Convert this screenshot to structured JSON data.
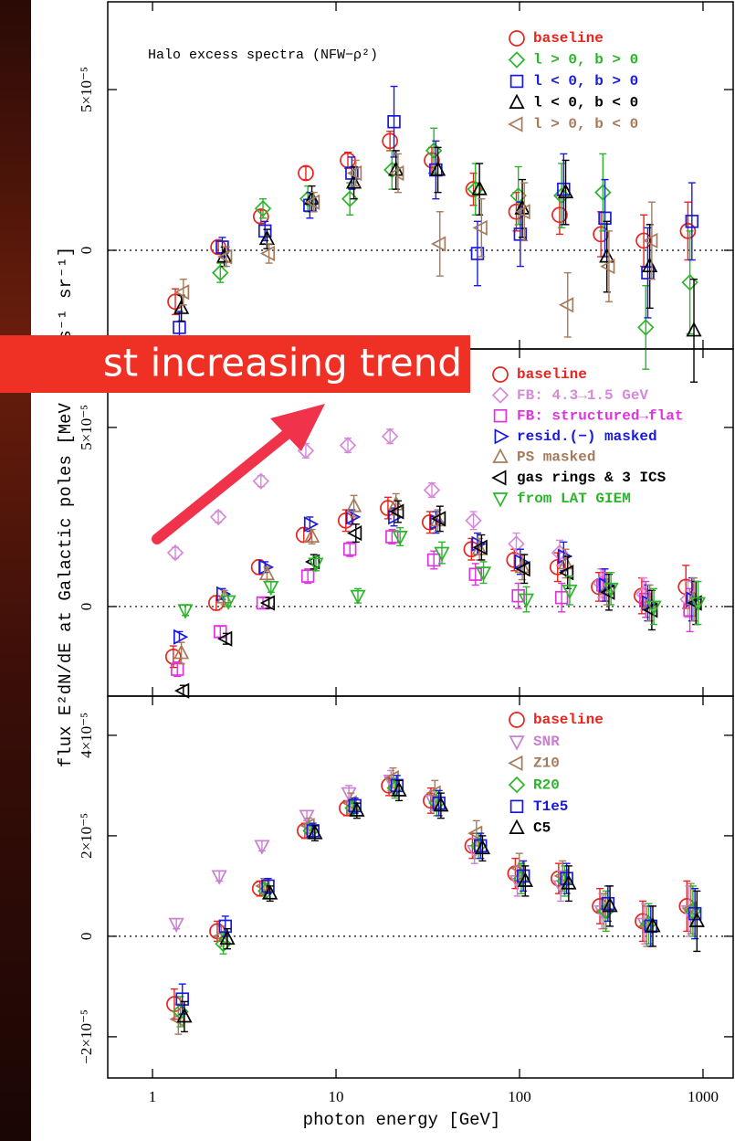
{
  "chart_data": [
    {
      "type": "scatter",
      "annotation": "Halo excess spectra (NFW−ρ²)",
      "log_x": true,
      "legend": "upper right",
      "zero_line": true,
      "x": [
        1.4,
        2.4,
        4.1,
        7.2,
        12.2,
        20.7,
        35,
        59,
        101,
        174,
        292,
        500,
        870
      ],
      "xlim": [
        0.57,
        1460
      ],
      "xticks": [
        1,
        10,
        100,
        1000
      ],
      "ylim": [
        -3.07e-05,
        7.73e-05
      ],
      "yticks": [
        0,
        {
          "value": 5e-05,
          "label": "5×10⁻⁵"
        }
      ],
      "series": [
        {
          "name": "baseline",
          "color": "#e8241e",
          "marker": "circle",
          "values": [
            -1.6e-05,
            1e-06,
            1.05e-05,
            2.4e-05,
            2.8e-05,
            3.4e-05,
            2.8e-05,
            1.9e-05,
            1.2e-05,
            1.1e-05,
            5e-06,
            3e-06,
            6e-06
          ],
          "errors": [
            4e-06,
            2e-06,
            2e-06,
            2e-06,
            2.5e-06,
            3e-06,
            4e-06,
            5e-06,
            6e-06,
            6e-06,
            7e-06,
            8e-06,
            9e-06
          ]
        },
        {
          "name": "l > 0, b > 0",
          "color": "#2bb52b",
          "marker": "diamond",
          "values": [
            null,
            -7e-06,
            1.3e-05,
            1.6e-05,
            1.6e-05,
            2.5e-05,
            3.1e-05,
            1.9e-05,
            1.7e-05,
            1.7e-05,
            1.8e-05,
            -2.4e-05,
            -1e-05
          ],
          "errors": [
            null,
            3e-06,
            3e-06,
            4e-06,
            5e-06,
            6e-06,
            7e-06,
            8e-06,
            9e-06,
            1e-05,
            1.2e-05,
            1.3e-05,
            1.6e-05
          ]
        },
        {
          "name": "l < 0, b > 0",
          "color": "#1a1adf",
          "marker": "square",
          "values": [
            -2.4e-05,
            1e-06,
            6e-06,
            1.4e-05,
            2.4e-05,
            4e-05,
            2.5e-05,
            -1e-06,
            5e-06,
            1.9e-05,
            1e-05,
            -7e-06,
            9e-06
          ],
          "errors": [
            5e-06,
            3e-06,
            3e-06,
            4e-06,
            5e-06,
            1.1e-05,
            9e-06,
            1e-05,
            1e-05,
            1.1e-05,
            1.2e-05,
            1.4e-05,
            1.2e-05
          ]
        },
        {
          "name": "l < 0, b < 0",
          "color": "#000000",
          "marker": "triangle-up",
          "values": [
            -1.8e-05,
            -2e-06,
            3.5e-06,
            1.6e-05,
            2.1e-05,
            2.5e-05,
            2.5e-05,
            1.9e-05,
            1.3e-05,
            1.8e-05,
            -2e-06,
            -5e-06,
            -2.5e-05
          ],
          "errors": [
            4e-06,
            3e-06,
            3e-06,
            4e-06,
            5e-06,
            6e-06,
            7e-06,
            8e-06,
            9e-06,
            1e-05,
            1.1e-05,
            1.3e-05,
            1.6e-05
          ]
        },
        {
          "name": "l > 0, b < 0",
          "color": "#a67b5b",
          "marker": "triangle-left",
          "values": [
            -1.3e-05,
            -2e-06,
            -1e-06,
            1.5e-05,
            2.4e-05,
            2.4e-05,
            2e-06,
            7e-06,
            1.2e-05,
            -1.7e-05,
            -5e-06,
            3e-06,
            null
          ],
          "errors": [
            4e-06,
            3e-06,
            3e-06,
            3e-06,
            4e-06,
            6e-06,
            1e-05,
            9e-06,
            9e-06,
            1e-05,
            1.1e-05,
            1.2e-05,
            null
          ]
        }
      ]
    },
    {
      "type": "scatter",
      "ylabel": "flux E²dN/dE at Galactic poles [MeV cm⁻² s⁻¹ sr⁻¹]",
      "log_x": true,
      "legend": "upper right",
      "zero_line": true,
      "x": [
        1.4,
        2.4,
        4.1,
        7.2,
        12.2,
        20.7,
        35,
        59,
        101,
        174,
        292,
        500,
        870
      ],
      "xlim": [
        0.57,
        1460
      ],
      "xticks": [
        1,
        10,
        100,
        1000
      ],
      "ylim": [
        -2.5e-05,
        7.19e-05
      ],
      "yticks": [
        0,
        {
          "value": 5e-05,
          "label": "5×10⁻⁵"
        }
      ],
      "series": [
        {
          "name": "baseline",
          "color": "#e8241e",
          "marker": "circle",
          "values": [
            -1.4e-05,
            1e-06,
            1.1e-05,
            2e-05,
            2.4e-05,
            2.75e-05,
            2.35e-05,
            1.6e-05,
            1.3e-05,
            1.1e-05,
            5.5e-06,
            3e-06,
            5.5e-06
          ],
          "errors": [
            3e-06,
            2e-06,
            2e-06,
            2e-06,
            3e-06,
            3e-06,
            3e-06,
            3e-06,
            3e-06,
            4e-06,
            4e-06,
            5e-06,
            6e-06
          ]
        },
        {
          "name": "FB: 4.3→1.5 GeV",
          "color": "#d58ad8",
          "marker": "diamond",
          "values": [
            1.5e-05,
            2.5e-05,
            3.5e-05,
            4.35e-05,
            4.5e-05,
            4.75e-05,
            3.25e-05,
            2.4e-05,
            1.75e-05,
            1.5e-05,
            6.5e-06,
            3.5e-06,
            2e-06
          ],
          "errors": [
            1.5e-06,
            1.5e-06,
            1.5e-06,
            2e-06,
            2e-06,
            2e-06,
            2e-06,
            2.5e-06,
            3e-06,
            3.5e-06,
            4e-06,
            4.5e-06,
            5e-06
          ]
        },
        {
          "name": "FB: structured→flat",
          "color": "#e033e0",
          "marker": "square",
          "values": [
            -1.75e-05,
            -7e-06,
            1e-06,
            8.5e-06,
            1.6e-05,
            1.95e-05,
            1.3e-05,
            9e-06,
            3e-06,
            2.5e-06,
            6e-06,
            2e-06,
            -1e-06
          ],
          "errors": [
            2e-06,
            1.5e-06,
            1.5e-06,
            2e-06,
            2e-06,
            2e-06,
            2.5e-06,
            3e-06,
            3.5e-06,
            4e-06,
            4.5e-06,
            5e-06,
            6e-06
          ]
        },
        {
          "name": "resid.(−) masked",
          "color": "#1a1adf",
          "marker": "triangle-right",
          "values": [
            -8.5e-06,
            3.5e-06,
            1.1e-05,
            2.3e-05,
            2.5e-05,
            2.5e-05,
            2.35e-05,
            1.75e-05,
            1.25e-05,
            1.4e-05,
            6e-06,
            1e-06,
            2e-06
          ],
          "errors": [
            1.5e-06,
            1.5e-06,
            1.5e-06,
            2e-06,
            2e-06,
            2.5e-06,
            3e-06,
            3e-06,
            3.5e-06,
            4e-06,
            4.5e-06,
            5e-06,
            6e-06
          ]
        },
        {
          "name": "PS masked",
          "color": "#a67b5b",
          "marker": "triangle-up",
          "values": [
            -1.3e-05,
            2.5e-06,
            9e-06,
            1.95e-05,
            2.8e-05,
            2.85e-05,
            2.4e-05,
            1.6e-05,
            1.1e-05,
            1.2e-05,
            5e-06,
            1e-06,
            2e-06
          ],
          "errors": [
            3e-06,
            2e-06,
            2e-06,
            2e-06,
            3e-06,
            3e-06,
            3e-06,
            3e-06,
            3.5e-06,
            4e-06,
            4.5e-06,
            5e-06,
            6e-06
          ]
        },
        {
          "name": "gas rings & 3 ICS",
          "color": "#000000",
          "marker": "triangle-left",
          "values": [
            -2.35e-05,
            -9e-06,
            1e-06,
            1.25e-05,
            2.05e-05,
            2.65e-05,
            2.45e-05,
            1.65e-05,
            1.05e-05,
            9.5e-06,
            4e-06,
            -1e-06,
            1e-06
          ],
          "errors": [
            1.5e-06,
            1.5e-06,
            1.5e-06,
            2e-06,
            2.5e-06,
            3e-06,
            3.5e-06,
            3.5e-06,
            4e-06,
            4.5e-06,
            5e-06,
            5.5e-06,
            6e-06
          ]
        },
        {
          "name": "from LAT GIEM",
          "color": "#2bb52b",
          "marker": "triangle-down",
          "values": [
            -1e-06,
            1.5e-06,
            5.5e-06,
            1.2e-05,
            3e-06,
            1.95e-05,
            1.5e-05,
            9.5e-06,
            2e-06,
            4.5e-06,
            5e-06,
            0,
            1e-06
          ],
          "errors": [
            1.5e-06,
            1.5e-06,
            1.5e-06,
            2e-06,
            2e-06,
            2.5e-06,
            3e-06,
            3e-06,
            3.5e-06,
            4e-06,
            4.5e-06,
            5e-06,
            6e-06
          ]
        }
      ]
    },
    {
      "type": "scatter",
      "xlabel": "photon energy [GeV]",
      "log_x": true,
      "legend": "upper right",
      "zero_line": true,
      "x": [
        1.4,
        2.4,
        4.1,
        7.2,
        12.2,
        20.7,
        35,
        59,
        101,
        174,
        292,
        500,
        870
      ],
      "xlim": [
        0.57,
        1460
      ],
      "xticks": [
        1,
        10,
        100,
        1000
      ],
      "ylim": [
        -2.82e-05,
        4.78e-05
      ],
      "yticks": [
        {
          "value": -2e-05,
          "label": "−2×10⁻⁵"
        },
        0,
        {
          "value": 2e-05,
          "label": "2×10⁻⁵"
        },
        {
          "value": 4e-05,
          "label": "4×10⁻⁵"
        }
      ],
      "series": [
        {
          "name": "baseline",
          "color": "#e8241e",
          "marker": "circle",
          "values": [
            -1.35e-05,
            1e-06,
            9.5e-06,
            2.1e-05,
            2.55e-05,
            3e-05,
            2.7e-05,
            1.8e-05,
            1.25e-05,
            1.15e-05,
            6e-06,
            3e-06,
            6e-06
          ],
          "errors": [
            3e-06,
            2e-06,
            1.5e-06,
            1.5e-06,
            1.5e-06,
            2e-06,
            2.5e-06,
            2.5e-06,
            3e-06,
            3e-06,
            3.5e-06,
            4e-06,
            5e-06
          ]
        },
        {
          "name": "SNR",
          "color": "#c880d0",
          "marker": "triangle-down",
          "values": [
            2.5e-06,
            1.2e-05,
            1.8e-05,
            2.4e-05,
            2.85e-05,
            3.1e-05,
            2.7e-05,
            1.7e-05,
            1.1e-05,
            1e-05,
            5e-06,
            2.5e-06,
            5e-06
          ],
          "errors": [
            1e-06,
            1e-06,
            1e-06,
            1e-06,
            1.5e-06,
            2e-06,
            2e-06,
            2.5e-06,
            3e-06,
            3e-06,
            3.5e-06,
            4e-06,
            5e-06
          ]
        },
        {
          "name": "Z10",
          "color": "#a67b5b",
          "marker": "triangle-left",
          "values": [
            -1.65e-05,
            0,
            1e-05,
            2.2e-05,
            2.65e-05,
            3.15e-05,
            2.85e-05,
            2.05e-05,
            1.35e-05,
            1.2e-05,
            5e-06,
            2e-06,
            5.5e-06
          ],
          "errors": [
            3e-06,
            2e-06,
            1.5e-06,
            1.5e-06,
            2e-06,
            2e-06,
            2.5e-06,
            2.5e-06,
            3e-06,
            3e-06,
            3.5e-06,
            4e-06,
            5e-06
          ]
        },
        {
          "name": "R20",
          "color": "#2bb52b",
          "marker": "diamond",
          "values": [
            -1.5e-05,
            -1.5e-06,
            9e-06,
            2.1e-05,
            2.55e-05,
            2.95e-05,
            2.65e-05,
            1.8e-05,
            1.15e-05,
            1.1e-05,
            5e-06,
            2.5e-06,
            5e-06
          ],
          "errors": [
            3e-06,
            2e-06,
            1.5e-06,
            1.5e-06,
            1.5e-06,
            2e-06,
            2.5e-06,
            2.5e-06,
            3e-06,
            3e-06,
            4e-06,
            4e-06,
            5e-06
          ]
        },
        {
          "name": "T1e5",
          "color": "#1a1adf",
          "marker": "square",
          "values": [
            -1.25e-05,
            2e-06,
            1e-05,
            2.1e-05,
            2.6e-05,
            3e-05,
            2.65e-05,
            1.8e-05,
            1.2e-05,
            1.15e-05,
            6.5e-06,
            2e-06,
            4.5e-06
          ],
          "errors": [
            3e-06,
            2e-06,
            1.5e-06,
            1.5e-06,
            1.5e-06,
            2e-06,
            2.5e-06,
            2.5e-06,
            3e-06,
            3e-06,
            3.5e-06,
            4e-06,
            5e-06
          ]
        },
        {
          "name": "C5",
          "color": "#000000",
          "marker": "triangle-up",
          "values": [
            -1.6e-05,
            -5e-07,
            8.5e-06,
            2.05e-05,
            2.5e-05,
            2.9e-05,
            2.6e-05,
            1.75e-05,
            1.1e-05,
            1.05e-05,
            6e-06,
            2e-06,
            3e-06
          ],
          "errors": [
            3e-06,
            2e-06,
            1.5e-06,
            1.5e-06,
            1.5e-06,
            2e-06,
            2.5e-06,
            2.5e-06,
            3e-06,
            3.5e-06,
            4e-06,
            4e-06,
            6e-06
          ]
        }
      ]
    }
  ],
  "overlay_banner": "st increasing trend"
}
